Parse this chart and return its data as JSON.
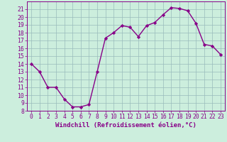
{
  "hours": [
    0,
    1,
    2,
    3,
    4,
    5,
    6,
    7,
    8,
    9,
    10,
    11,
    12,
    13,
    14,
    15,
    16,
    17,
    18,
    19,
    20,
    21,
    22,
    23
  ],
  "values": [
    14,
    13,
    11,
    11,
    9.5,
    8.5,
    8.5,
    8.8,
    13,
    17.3,
    18.0,
    18.9,
    18.7,
    17.5,
    18.9,
    19.3,
    20.3,
    21.2,
    21.1,
    20.8,
    19.2,
    16.5,
    16.3,
    15.2
  ],
  "line_color": "#880088",
  "marker": "D",
  "marker_size": 2.2,
  "bg_color": "#cceedd",
  "grid_color": "#99bbbb",
  "xlabel": "Windchill (Refroidissement éolien,°C)",
  "ylim": [
    8,
    22
  ],
  "yticks": [
    8,
    9,
    10,
    11,
    12,
    13,
    14,
    15,
    16,
    17,
    18,
    19,
    20,
    21
  ],
  "xlim": [
    -0.5,
    23.5
  ],
  "xticks": [
    0,
    1,
    2,
    3,
    4,
    5,
    6,
    7,
    8,
    9,
    10,
    11,
    12,
    13,
    14,
    15,
    16,
    17,
    18,
    19,
    20,
    21,
    22,
    23
  ],
  "tick_color": "#880088",
  "xlabel_color": "#880088",
  "xlabel_fontsize": 6.5,
  "tick_fontsize": 5.8,
  "linewidth": 1.0
}
